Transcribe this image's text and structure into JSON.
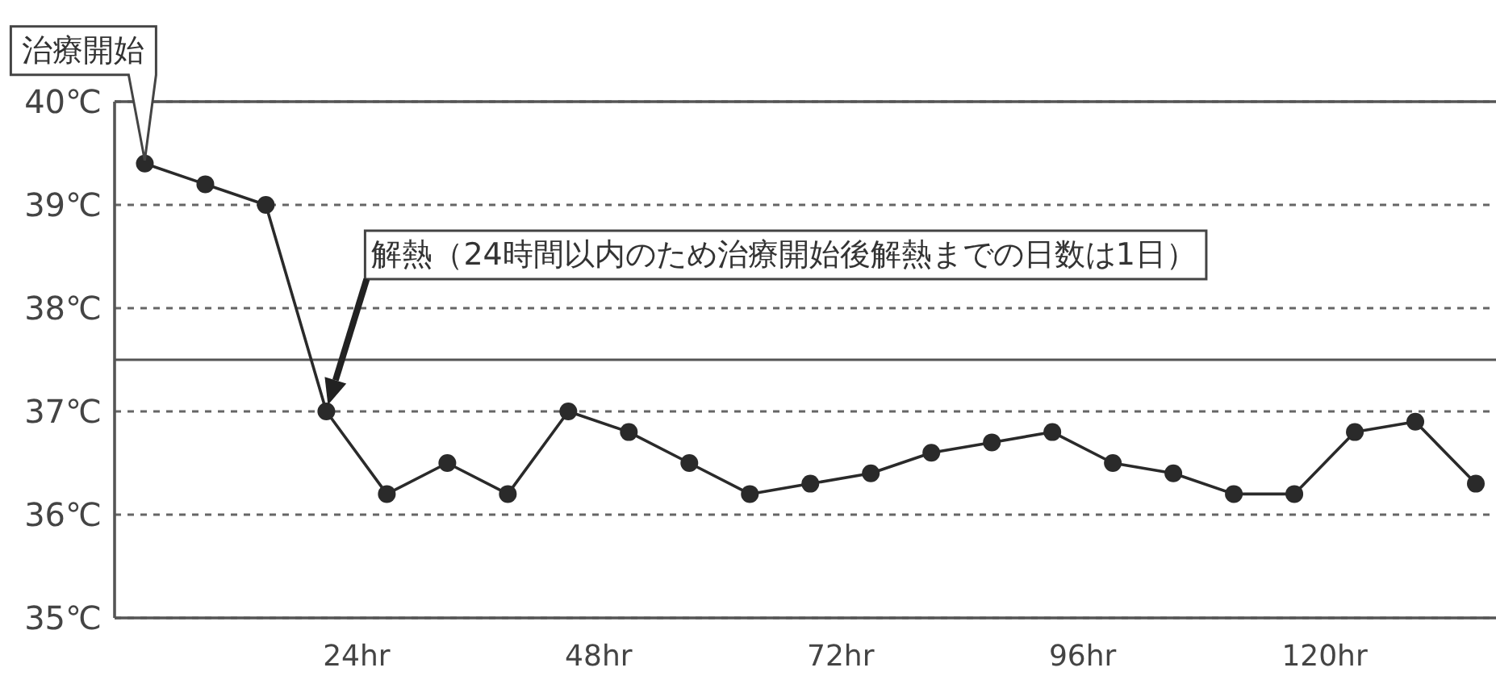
{
  "chart_data": {
    "type": "line",
    "x": [
      3,
      9,
      15,
      21,
      27,
      33,
      39,
      45,
      51,
      57,
      63,
      69,
      75,
      81,
      87,
      93,
      99,
      105,
      111,
      117,
      123,
      129,
      135
    ],
    "series": [
      {
        "color": "#2a2a2a",
        "values": [
          39.4,
          39.2,
          39.0,
          37.0,
          36.2,
          36.5,
          36.2,
          37.0,
          36.8,
          36.5,
          36.2,
          36.3,
          36.4,
          36.6,
          36.7,
          36.8,
          36.5,
          36.4,
          36.2,
          36.2,
          36.8,
          36.9,
          36.3
        ]
      }
    ],
    "xlim": [
      0,
      137
    ],
    "ylim": [
      35,
      40
    ],
    "xticks": [
      {
        "value": 24,
        "label": "24hr"
      },
      {
        "value": 48,
        "label": "48hr"
      },
      {
        "value": 72,
        "label": "72hr"
      },
      {
        "value": 96,
        "label": "96hr"
      },
      {
        "value": 120,
        "label": "120hr"
      }
    ],
    "yticks": [
      {
        "value": 35,
        "label": "35℃"
      },
      {
        "value": 36,
        "label": "36℃"
      },
      {
        "value": 37,
        "label": "37℃"
      },
      {
        "value": 38,
        "label": "38℃"
      },
      {
        "value": 39,
        "label": "39℃"
      },
      {
        "value": 40,
        "label": "40℃"
      }
    ],
    "grid": "y",
    "marker": "circle",
    "line_style": "solid",
    "ref_lines": [
      {
        "axis": "y",
        "value": 37.5,
        "color": "#555555"
      }
    ],
    "annotations": [
      "治療開始",
      "解熱（24時間以内のため治療開始後解熱までの日数は1日）"
    ]
  }
}
